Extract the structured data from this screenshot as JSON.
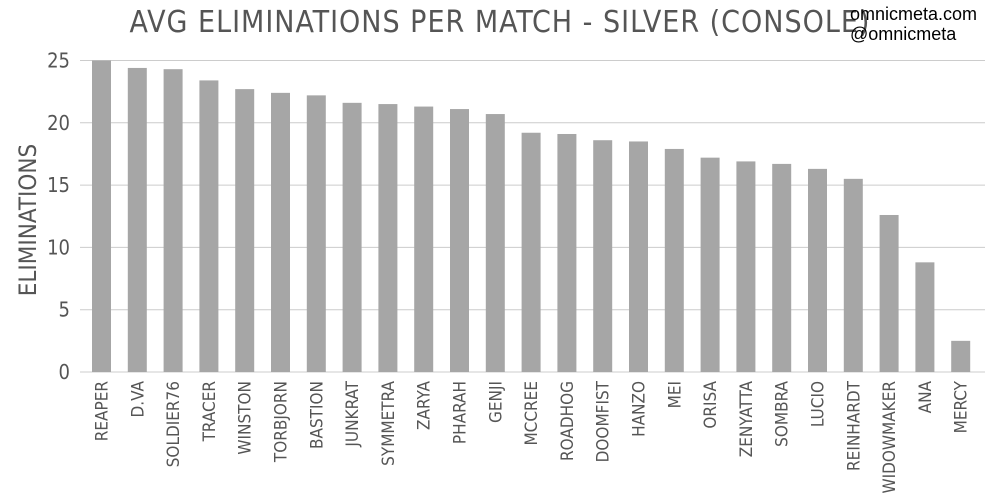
{
  "watermark": {
    "line1": "omnicmeta.com",
    "line2": "@omnicmeta"
  },
  "chart_data": {
    "type": "bar",
    "title": "AVG ELIMINATIONS PER MATCH - SILVER (CONSOLE)",
    "xlabel": "",
    "ylabel": "ELIMINATIONS",
    "ylim": [
      0,
      26
    ],
    "yticks": [
      0,
      5,
      10,
      15,
      20,
      25
    ],
    "grid": true,
    "legend": "none",
    "bar_color": "#a6a6a6",
    "grid_color": "#cccccc",
    "categories": [
      "REAPER",
      "D.VA",
      "SOLDIER76",
      "TRACER",
      "WINSTON",
      "TORBJORN",
      "BASTION",
      "JUNKRAT",
      "SYMMETRA",
      "ZARYA",
      "PHARAH",
      "GENJI",
      "MCCREE",
      "ROADHOG",
      "DOOMFIST",
      "HANZO",
      "MEI",
      "ORISA",
      "ZENYATTA",
      "SOMBRA",
      "LUCIO",
      "REINHARDT",
      "WIDOWMAKER",
      "ANA",
      "MERCY"
    ],
    "values": [
      25.0,
      24.4,
      24.3,
      23.4,
      22.7,
      22.4,
      22.2,
      21.6,
      21.5,
      21.3,
      21.1,
      20.7,
      19.2,
      19.1,
      18.6,
      18.5,
      17.9,
      17.2,
      16.9,
      16.7,
      16.3,
      15.5,
      12.6,
      8.8,
      2.5
    ]
  }
}
